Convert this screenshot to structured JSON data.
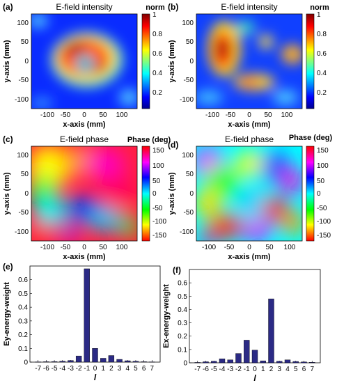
{
  "panels": {
    "a": {
      "label": "(a)",
      "title": "E-field intensity",
      "xlabel": "x-axis (mm)",
      "ylabel": "y-axis (mm)",
      "cb_title": "norm"
    },
    "b": {
      "label": "(b)",
      "title": "E-field intensity",
      "xlabel": "x-axis (mm)",
      "ylabel": "y-axis (mm)",
      "cb_title": "norm"
    },
    "c": {
      "label": "(c)",
      "title": "E-field phase",
      "xlabel": "x-axis (mm)",
      "ylabel": "y-axis (mm)",
      "cb_title": "Phase (deg)"
    },
    "d": {
      "label": "(d)",
      "title": "E-field phase",
      "xlabel": "x-axis (mm)",
      "ylabel": "y-axis (mm)",
      "cb_title": "Phase (deg)"
    },
    "e": {
      "label": "(e)"
    },
    "f": {
      "label": "(f)"
    }
  },
  "map_ticks": {
    "x": [
      "-100",
      "-50",
      "0",
      "50",
      "100"
    ],
    "y": [
      "100",
      "50",
      "0",
      "-50",
      "-100"
    ]
  },
  "intensity_cb_ticks": [
    "1",
    "0.8",
    "0.6",
    "0.4",
    "0.2"
  ],
  "phase_cb_ticks": [
    "150",
    "100",
    "50",
    "0",
    "-50",
    "-100",
    "-150"
  ],
  "colors": {
    "bar_fill": "#2b2a85",
    "jet": [
      "#00008f",
      "#0000ff",
      "#00ffff",
      "#ffff00",
      "#ff0000",
      "#800000"
    ],
    "hsv": [
      "#ff0000",
      "#ff00ff",
      "#0000ff",
      "#00ffff",
      "#00ff00",
      "#ffff00",
      "#ff0000"
    ]
  },
  "chart_data": [
    {
      "type": "heatmap",
      "panel": "a",
      "title": "E-field intensity",
      "xlabel": "x-axis (mm)",
      "ylabel": "y-axis (mm)",
      "xlim": [
        -130,
        130
      ],
      "ylim": [
        -120,
        120
      ],
      "colorbar": {
        "title": "norm",
        "range": [
          0.05,
          1
        ],
        "colormap": "jet"
      },
      "description": "ring-shaped intensity with a null at the center"
    },
    {
      "type": "heatmap",
      "panel": "b",
      "title": "E-field intensity",
      "xlabel": "x-axis (mm)",
      "ylabel": "y-axis (mm)",
      "xlim": [
        -130,
        130
      ],
      "ylim": [
        -120,
        120
      ],
      "colorbar": {
        "title": "norm",
        "range": [
          0.05,
          1
        ],
        "colormap": "jet"
      }
    },
    {
      "type": "heatmap",
      "panel": "c",
      "title": "E-field phase",
      "xlabel": "x-axis (mm)",
      "ylabel": "y-axis (mm)",
      "xlim": [
        -130,
        130
      ],
      "ylim": [
        -120,
        120
      ],
      "colorbar": {
        "title": "Phase (deg)",
        "range": [
          -180,
          180
        ],
        "colormap": "hsv"
      }
    },
    {
      "type": "heatmap",
      "panel": "d",
      "title": "E-field phase",
      "xlabel": "x-axis (mm)",
      "ylabel": "y-axis (mm)",
      "xlim": [
        -130,
        130
      ],
      "ylim": [
        -120,
        120
      ],
      "colorbar": {
        "title": "Phase (deg)",
        "range": [
          -180,
          180
        ],
        "colormap": "hsv"
      }
    },
    {
      "type": "bar",
      "panel": "e",
      "xlabel": "l",
      "ylabel": "Ey-energy-weight",
      "categories": [
        "-7",
        "-6",
        "-5",
        "-4",
        "-3",
        "-2",
        "-1",
        "0",
        "1",
        "2",
        "3",
        "4",
        "5",
        "6",
        "7"
      ],
      "values": [
        0.002,
        0.003,
        0.004,
        0.007,
        0.012,
        0.045,
        0.68,
        0.1,
        0.028,
        0.048,
        0.02,
        0.01,
        0.006,
        0.003,
        0.002
      ],
      "ylim": [
        0,
        0.7
      ],
      "yticks": [
        0,
        0.1,
        0.2,
        0.3,
        0.4,
        0.5,
        0.6
      ]
    },
    {
      "type": "bar",
      "panel": "f",
      "xlabel": "l",
      "ylabel": "Ex-energy-weight",
      "categories": [
        "-7",
        "-6",
        "-5",
        "-4",
        "-3",
        "-2",
        "-1",
        "0",
        "1",
        "2",
        "3",
        "4",
        "5",
        "6",
        "7"
      ],
      "values": [
        0.003,
        0.008,
        0.012,
        0.03,
        0.022,
        0.07,
        0.17,
        0.095,
        0.015,
        0.48,
        0.012,
        0.022,
        0.01,
        0.007,
        0.004
      ],
      "ylim": [
        0,
        0.7
      ],
      "yticks": [
        0,
        0.1,
        0.2,
        0.3,
        0.4,
        0.5,
        0.6
      ]
    }
  ]
}
